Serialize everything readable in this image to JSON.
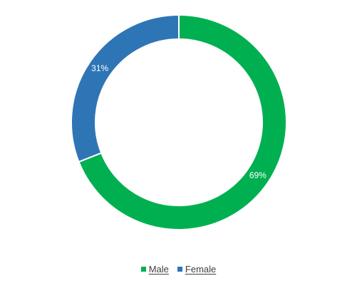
{
  "chart_data": {
    "type": "pie",
    "style": "donut",
    "title": "",
    "legend_position": "bottom",
    "series": [
      {
        "name": "Male",
        "value": 69,
        "label": "69%",
        "color": "#00b050"
      },
      {
        "name": "Female",
        "value": 31,
        "label": "31%",
        "color": "#2e75b6"
      }
    ]
  }
}
